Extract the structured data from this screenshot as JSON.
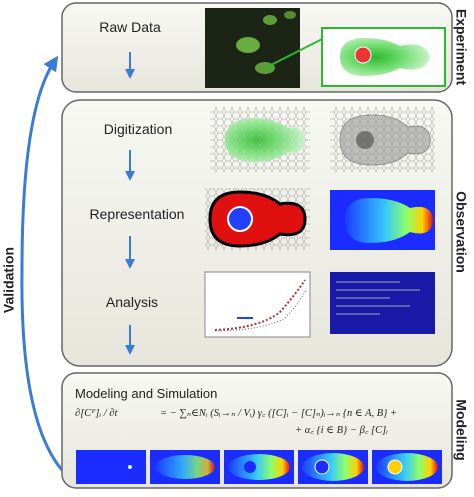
{
  "stages": {
    "experiment": "Experiment",
    "observation": "Observation",
    "modeling": "Modeling"
  },
  "loop_label": "Validation",
  "steps": [
    "Raw Data",
    "Digitization",
    "Representation",
    "Analysis"
  ],
  "modeling_title": "Modeling and Simulation",
  "equation": {
    "line1_left": "∂[Cᴾ]ᵢ / ∂t",
    "line1_right": "=  − ∑ₙ∈Nᵢ (Sᵢ→ₙ / Vᵢ) γ꜀ ([C]ᵢ − [C]ₙ)ᵢ→ₙ {n ∈ A, B} +",
    "line2": "+ α꜀ {i ∈ B} − β꜀ [C]ᵢ"
  }
}
